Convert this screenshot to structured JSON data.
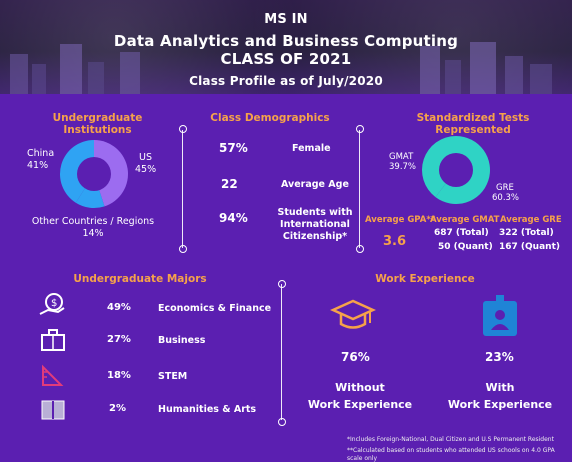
{
  "header": {
    "line1": "MS IN",
    "line2": "Data Analytics and Business Computing",
    "line3": "CLASS OF 2021",
    "line4": "Class Profile as of July/2020"
  },
  "institutions": {
    "title": "Undergraduate Institutions",
    "china_label": "China",
    "china_pct": "41%",
    "us_label": "US",
    "us_pct": "45%",
    "other_label": "Other Countries / Regions",
    "other_pct": "14%",
    "chart_data": {
      "type": "pie",
      "categories": [
        "China",
        "US",
        "Other Countries / Regions"
      ],
      "values": [
        41,
        45,
        14
      ]
    }
  },
  "demographics": {
    "title": "Class Demographics",
    "rows": [
      {
        "value": "57%",
        "label": "Female"
      },
      {
        "value": "22",
        "label": "Average Age"
      },
      {
        "value": "94%",
        "label_lines": [
          "Students with",
          "International",
          "Citizenship*"
        ]
      }
    ]
  },
  "tests": {
    "title_line1": "Standardized Tests",
    "title_line2": "Represented",
    "gmat_label": "GMAT",
    "gmat_pct": "39.7%",
    "gre_label": "GRE",
    "gre_pct": "60.3%",
    "chart_data": {
      "type": "pie",
      "categories": [
        "GMAT",
        "GRE"
      ],
      "values": [
        39.7,
        60.3
      ]
    },
    "avg_gpa_label": "Average GPA**",
    "avg_gpa_value": "3.6",
    "avg_gmat_label": "Average GMAT",
    "avg_gmat_total": "687 (Total)",
    "avg_gmat_quant": "50 (Quant)",
    "avg_gre_label": "Average GRE",
    "avg_gre_total": "322 (Total)",
    "avg_gre_quant": "167 (Quant)"
  },
  "majors": {
    "title": "Undergraduate Majors",
    "items": [
      {
        "pct": "49%",
        "label": "Economics & Finance",
        "icon": "money-hand-icon"
      },
      {
        "pct": "27%",
        "label": "Business",
        "icon": "briefcase-icon"
      },
      {
        "pct": "18%",
        "label": "STEM",
        "icon": "ruler-triangle-icon"
      },
      {
        "pct": "2%",
        "label": "Humanities & Arts",
        "icon": "book-icon"
      }
    ]
  },
  "experience": {
    "title": "Work Experience",
    "without_pct": "76%",
    "without_line1": "Without",
    "without_line2": "Work Experience",
    "with_pct": "23%",
    "with_line1": "With",
    "with_line2": "Work Experience",
    "colors": {
      "orange": "#f6a24a",
      "blue": "#1f84d6"
    }
  },
  "footnotes": {
    "line1": "*Includes Foreign-National, Dual Citizen and U.S Permanent Resident",
    "line2": "**Calculated based on students who attended US schools on 4.0 GPA scale only"
  },
  "colors": {
    "background": "#5b1fb1",
    "accent": "#f6a24a",
    "donut_purple": "#9c6cf0",
    "donut_blue": "#2fa3f3",
    "donut_teal": "#2fd3c5"
  }
}
